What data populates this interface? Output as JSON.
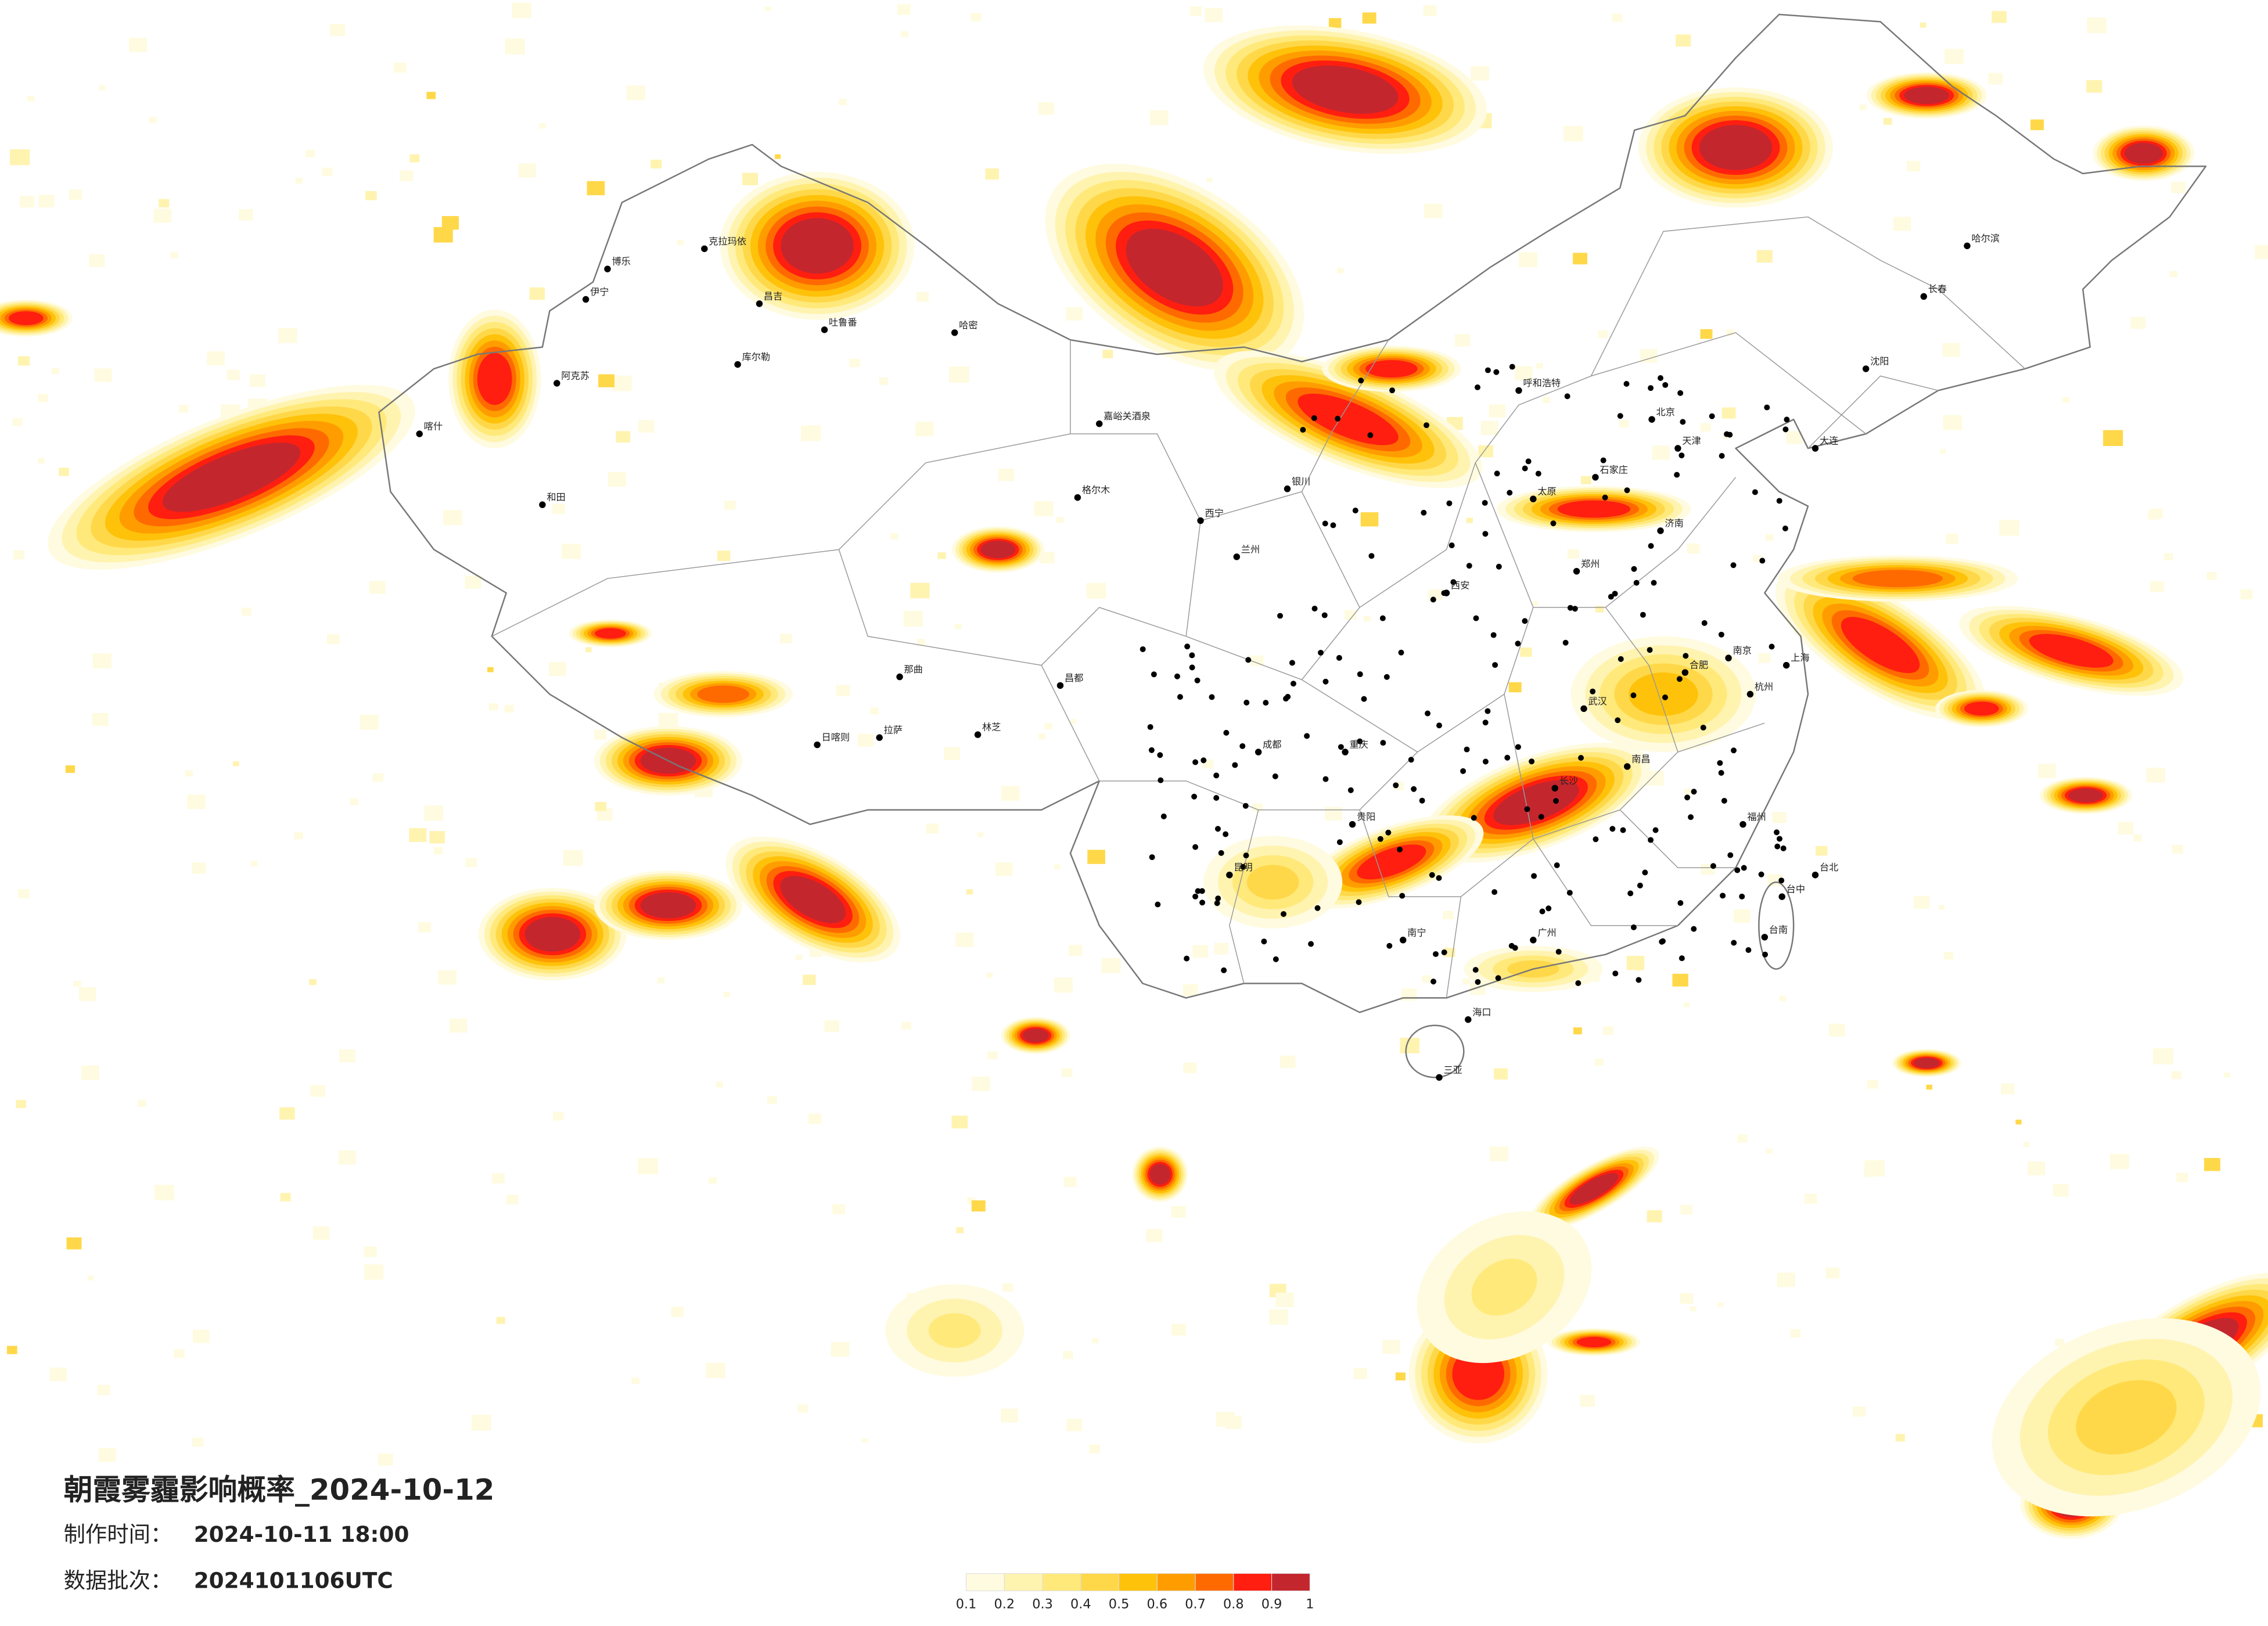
{
  "title": "朝霞雾霾影响概率_2024-10-12",
  "issue_time": {
    "label": "制作时间：",
    "value": "2024-10-11 18:00"
  },
  "batch": {
    "label": "数据批次：",
    "value": "2024101106UTC"
  },
  "legend": {
    "colors": [
      "#fffbe0",
      "#fff3b0",
      "#ffe97a",
      "#ffd84a",
      "#ffc20a",
      "#ff9d00",
      "#ff6a00",
      "#ff1e10",
      "#c4262e"
    ],
    "ticks": [
      0.1,
      0.2,
      0.3,
      0.4,
      0.5,
      0.6,
      0.7,
      0.8,
      0.9,
      1
    ]
  },
  "cities": [
    "克拉玛依",
    "博乐",
    "伊宁",
    "昌吉",
    "吐鲁番",
    "哈密",
    "库尔勒",
    "阿克苏",
    "喀什",
    "和田",
    "嘉峪关酒泉",
    "格尔木",
    "拉萨",
    "日喀则",
    "林芝",
    "昌都",
    "那曲",
    "西宁",
    "兰州",
    "银川",
    "呼和浩特",
    "北京",
    "天津",
    "石家庄",
    "太原",
    "济南",
    "郑州",
    "西安",
    "成都",
    "重庆",
    "贵阳",
    "昆明",
    "南宁",
    "广州",
    "长沙",
    "武汉",
    "南昌",
    "杭州",
    "南京",
    "上海",
    "福州",
    "合肥",
    "长春",
    "沈阳",
    "哈尔滨",
    "海口",
    "三亚",
    "台北",
    "大连",
    "台中",
    "台南"
  ]
}
